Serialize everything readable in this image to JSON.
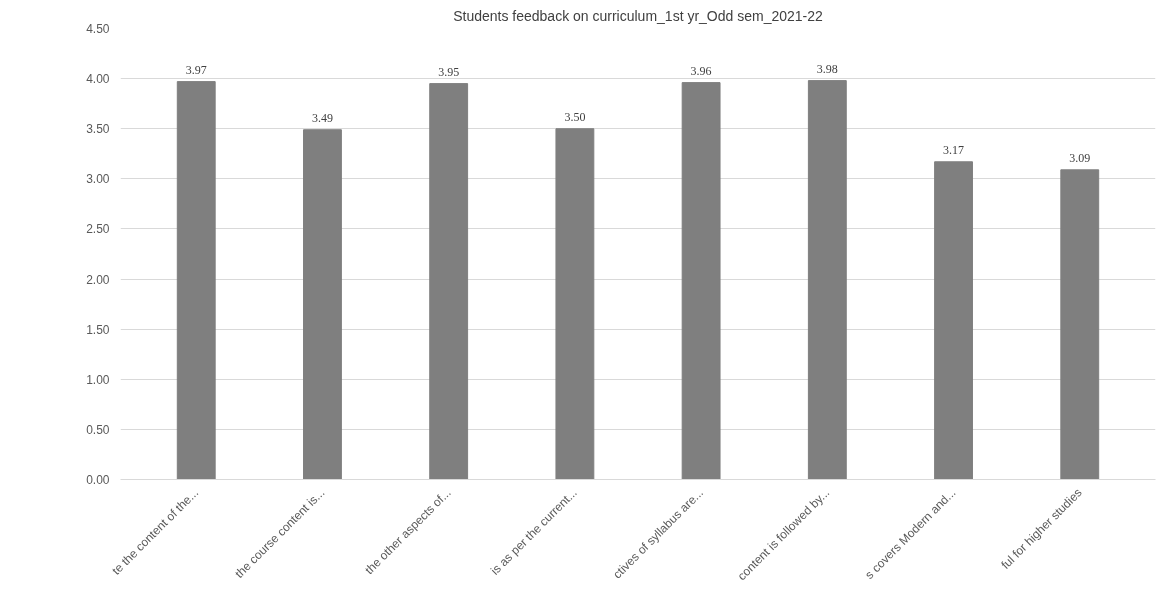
{
  "chart_data": {
    "type": "bar",
    "title": "Students feedback on curriculum_1st yr_Odd sem_2021-22",
    "categories": [
      "te the content of the...",
      "the course content is...",
      "the other aspects of...",
      "is as per the current...",
      "ctives of syllabus are...",
      "content is followed by...",
      "s covers Modern and...",
      "ful for higher studies"
    ],
    "values": [
      3.97,
      3.49,
      3.95,
      3.5,
      3.96,
      3.98,
      3.17,
      3.09
    ],
    "value_labels": [
      "3.97",
      "3.49",
      "3.95",
      "3.50",
      "3.96",
      "3.98",
      "3.17",
      "3.09"
    ],
    "color": "#7f7f7f",
    "ylim": [
      0,
      4.5
    ],
    "yticks": [
      {
        "value": 0,
        "label": "0.00"
      },
      {
        "value": 0.5,
        "label": "0.50"
      },
      {
        "value": 1,
        "label": "1.00"
      },
      {
        "value": 1.5,
        "label": "1.50"
      },
      {
        "value": 2,
        "label": "2.00"
      },
      {
        "value": 2.5,
        "label": "2.50"
      },
      {
        "value": 3,
        "label": "3.00"
      },
      {
        "value": 3.5,
        "label": "3.50"
      },
      {
        "value": 4,
        "label": "4.00"
      },
      {
        "value": 4.5,
        "label": "4.50"
      }
    ],
    "grid": "y"
  }
}
